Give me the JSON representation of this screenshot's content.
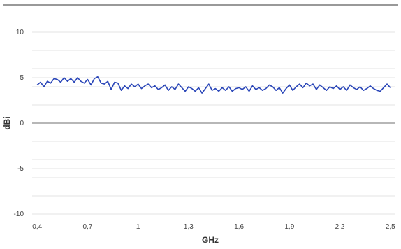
{
  "chart_data": {
    "type": "line",
    "title": "",
    "xlabel": "GHz",
    "ylabel": "dBi",
    "xlim": [
      0.37,
      2.53
    ],
    "ylim": [
      -10,
      10
    ],
    "x_ticks": [
      0.4,
      0.7,
      1,
      1.3,
      1.6,
      1.9,
      2.2,
      2.5
    ],
    "x_tick_labels": [
      "0,4",
      "0,7",
      "1",
      "1,3",
      "1,6",
      "1,9",
      "2,2",
      "2,5"
    ],
    "y_ticks": [
      10,
      5,
      0,
      -5,
      -10
    ],
    "y_tick_labels": [
      "10",
      "5",
      "0",
      "-5",
      "-10"
    ],
    "grid": true,
    "zero_line": true,
    "legend": "none",
    "colors": {
      "line": "#2a46b8",
      "grid": "#e3e3e3",
      "zero_line": "#8c8c8c",
      "top_rule": "#333333"
    },
    "series": [
      {
        "x": [
          0.4,
          0.42,
          0.44,
          0.46,
          0.48,
          0.5,
          0.52,
          0.54,
          0.56,
          0.58,
          0.6,
          0.62,
          0.64,
          0.66,
          0.68,
          0.7,
          0.72,
          0.74,
          0.76,
          0.78,
          0.8,
          0.82,
          0.84,
          0.86,
          0.88,
          0.9,
          0.92,
          0.94,
          0.96,
          0.98,
          1.0,
          1.02,
          1.04,
          1.06,
          1.08,
          1.1,
          1.12,
          1.14,
          1.16,
          1.18,
          1.2,
          1.22,
          1.24,
          1.26,
          1.28,
          1.3,
          1.32,
          1.34,
          1.36,
          1.38,
          1.4,
          1.42,
          1.44,
          1.46,
          1.48,
          1.5,
          1.52,
          1.54,
          1.56,
          1.58,
          1.6,
          1.62,
          1.64,
          1.66,
          1.68,
          1.7,
          1.72,
          1.74,
          1.76,
          1.78,
          1.8,
          1.82,
          1.84,
          1.86,
          1.88,
          1.9,
          1.92,
          1.94,
          1.96,
          1.98,
          2.0,
          2.02,
          2.04,
          2.06,
          2.08,
          2.1,
          2.12,
          2.14,
          2.16,
          2.18,
          2.2,
          2.22,
          2.24,
          2.26,
          2.28,
          2.3,
          2.32,
          2.34,
          2.36,
          2.38,
          2.4,
          2.42,
          2.44,
          2.46,
          2.48,
          2.5
        ],
        "values": [
          4.2,
          4.5,
          4.0,
          4.6,
          4.4,
          4.9,
          4.8,
          4.5,
          5.0,
          4.6,
          4.9,
          4.5,
          5.0,
          4.6,
          4.4,
          4.8,
          4.2,
          4.9,
          5.1,
          4.4,
          4.3,
          4.6,
          3.7,
          4.5,
          4.4,
          3.6,
          4.1,
          3.8,
          4.3,
          4.0,
          4.3,
          3.8,
          4.1,
          4.3,
          3.9,
          4.1,
          3.7,
          3.9,
          4.2,
          3.6,
          4.0,
          3.7,
          4.3,
          3.9,
          3.5,
          4.0,
          3.8,
          3.5,
          3.9,
          3.3,
          3.8,
          4.3,
          3.6,
          3.8,
          3.5,
          3.9,
          3.6,
          4.0,
          3.5,
          3.8,
          3.9,
          3.7,
          4.0,
          3.5,
          4.1,
          3.7,
          3.9,
          3.6,
          3.8,
          4.2,
          4.0,
          3.6,
          3.9,
          3.3,
          3.8,
          4.2,
          3.6,
          4.0,
          4.3,
          3.9,
          4.4,
          4.1,
          4.3,
          3.7,
          4.2,
          3.9,
          3.6,
          4.0,
          3.8,
          4.1,
          3.7,
          4.0,
          3.6,
          4.2,
          3.9,
          3.7,
          4.0,
          3.6,
          3.8,
          4.1,
          3.8,
          3.6,
          3.5,
          3.9,
          4.3,
          3.9
        ]
      }
    ]
  }
}
